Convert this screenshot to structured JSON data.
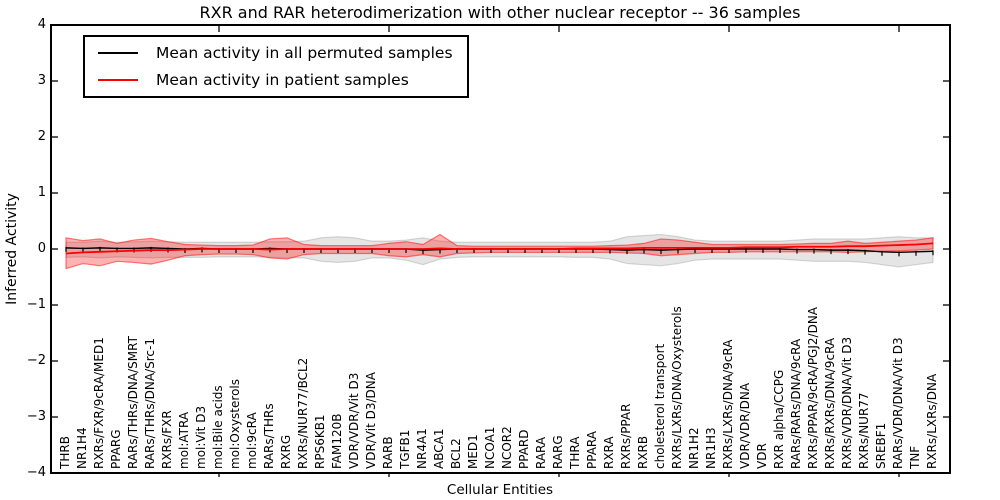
{
  "figure": {
    "title": "RXR and RAR heterodimerization with other nuclear receptor -- 36 samples",
    "xlabel": "Cellular Entities",
    "ylabel": "Inferred Activity"
  },
  "legend": {
    "entries": [
      {
        "label": "Mean activity in all permuted samples",
        "color": "#000000"
      },
      {
        "label": "Mean activity in patient samples",
        "color": "#ff0000"
      }
    ]
  },
  "axes": {
    "y_tick_labels": [
      "4",
      "3",
      "2",
      "1",
      "0",
      "−1",
      "−2",
      "−3",
      "−4"
    ],
    "y_tick_values": [
      4,
      3,
      2,
      1,
      0,
      -1,
      -2,
      -3,
      -4
    ],
    "spine_color": "#000000"
  },
  "chart_data": {
    "type": "line",
    "title": "RXR and RAR heterodimerization with other nuclear receptor -- 36 samples",
    "xlabel": "Cellular Entities",
    "ylabel": "Inferred Activity",
    "ylim": [
      -4,
      4
    ],
    "grid": false,
    "legend_position": "upper left",
    "top_tick_indices": [
      9,
      19,
      29,
      39,
      49
    ],
    "categories": [
      "THRB",
      "NR1H4",
      "RXRs/FXR/9cRA/MED1",
      "PPARG",
      "RARs/THRs/DNA/SMRT",
      "RARs/THRs/DNA/Src-1",
      "RXRs/FXR",
      "mol:ATRA",
      "mol:Vit D3",
      "mol:Bile acids",
      "mol:Oxysterols",
      "mol:9cRA",
      "RARs/THRs",
      "RXRG",
      "RXRs/NUR77/BCL2",
      "RPS6KB1",
      "FAM120B",
      "VDR/VDR/Vit D3",
      "VDR/Vit D3/DNA",
      "RARB",
      "TGFB1",
      "NR4A1",
      "ABCA1",
      "BCL2",
      "MED1",
      "NCOA1",
      "NCOR2",
      "PPARD",
      "RARA",
      "RARG",
      "THRA",
      "PPARA",
      "RXRA",
      "RXRs/PPAR",
      "RXRB",
      "cholesterol transport",
      "RXRs/LXRs/DNA/Oxysterols",
      "NR1H2",
      "NR1H3",
      "RXRs/LXRs/DNA/9cRA",
      "VDR/VDR/DNA",
      "VDR",
      "RXR alpha/CCPG",
      "RARs/RARs/DNA/9cRA",
      "RXRs/PPAR/9cRA/PGJ2/DNA",
      "RXRs/RXRs/DNA/9cRA",
      "RXRs/VDR/DNA/Vit D3",
      "RXRs/NUR77",
      "SREBF1",
      "RARs/VDR/DNA/Vit D3",
      "TNF",
      "RXRs/LXRs/DNA"
    ],
    "series": [
      {
        "name": "Mean activity in all permuted samples",
        "color": "#000000",
        "values": [
          0.02,
          0.01,
          0.02,
          0.01,
          0.01,
          0.02,
          0.01,
          0,
          0.01,
          0,
          0,
          0,
          0.01,
          0,
          0,
          0,
          0,
          0,
          0,
          0,
          0,
          -0.02,
          -0.01,
          0,
          0,
          0,
          0,
          0,
          0,
          0,
          0,
          0,
          -0.01,
          -0.02,
          -0.01,
          -0.02,
          -0.01,
          0,
          0,
          0,
          0,
          0,
          0,
          -0.01,
          -0.01,
          -0.02,
          -0.02,
          -0.03,
          -0.05,
          -0.06,
          -0.05,
          -0.04
        ]
      },
      {
        "name": "Mean activity in patient samples",
        "color": "#ff0000",
        "values": [
          -0.08,
          -0.06,
          -0.05,
          -0.04,
          -0.03,
          -0.02,
          -0.02,
          -0.01,
          0,
          0,
          0,
          0,
          -0.01,
          0,
          0,
          0,
          0,
          0,
          0,
          0,
          0,
          0,
          0.01,
          0,
          0,
          0,
          0,
          0,
          0,
          0,
          0.01,
          0.01,
          0.01,
          0.01,
          0.02,
          0.02,
          0.02,
          0.02,
          0.02,
          0.02,
          0.03,
          0.03,
          0.03,
          0.04,
          0.04,
          0.04,
          0.05,
          0.05,
          0.06,
          0.07,
          0.08,
          0.1
        ]
      }
    ],
    "bands": [
      {
        "name": "Permuted samples activity range",
        "fill": "rgba(0,0,0,0.10)",
        "stroke": "rgba(0,0,0,0.14)",
        "upper": [
          0.12,
          0.12,
          0.14,
          0.12,
          0.13,
          0.14,
          0.13,
          0.12,
          0.12,
          0.12,
          0.12,
          0.12,
          0.13,
          0.13,
          0.14,
          0.2,
          0.22,
          0.2,
          0.14,
          0.14,
          0.16,
          0.2,
          0.14,
          0.12,
          0.12,
          0.12,
          0.12,
          0.12,
          0.12,
          0.12,
          0.12,
          0.12,
          0.14,
          0.22,
          0.24,
          0.26,
          0.22,
          0.16,
          0.14,
          0.14,
          0.14,
          0.14,
          0.14,
          0.16,
          0.18,
          0.18,
          0.18,
          0.18,
          0.2,
          0.22,
          0.2,
          0.2
        ],
        "lower": [
          -0.15,
          -0.14,
          -0.16,
          -0.14,
          -0.15,
          -0.16,
          -0.15,
          -0.15,
          -0.15,
          -0.14,
          -0.14,
          -0.14,
          -0.15,
          -0.16,
          -0.16,
          -0.22,
          -0.24,
          -0.22,
          -0.16,
          -0.16,
          -0.2,
          -0.28,
          -0.18,
          -0.15,
          -0.14,
          -0.14,
          -0.14,
          -0.14,
          -0.14,
          -0.14,
          -0.15,
          -0.15,
          -0.18,
          -0.26,
          -0.28,
          -0.3,
          -0.26,
          -0.2,
          -0.18,
          -0.18,
          -0.18,
          -0.18,
          -0.18,
          -0.2,
          -0.22,
          -0.22,
          -0.22,
          -0.24,
          -0.28,
          -0.32,
          -0.28,
          -0.24
        ]
      },
      {
        "name": "Patient samples activity range",
        "fill": "rgba(255,0,0,0.30)",
        "stroke": "rgba(255,0,0,0.5)",
        "upper": [
          0.2,
          0.15,
          0.18,
          0.1,
          0.16,
          0.19,
          0.13,
          0.08,
          0.07,
          0.06,
          0.06,
          0.07,
          0.18,
          0.2,
          0.08,
          0.06,
          0.06,
          0.06,
          0.06,
          0.1,
          0.13,
          0.08,
          0.26,
          0.06,
          0.05,
          0.05,
          0.05,
          0.05,
          0.05,
          0.05,
          0.05,
          0.05,
          0.06,
          0.07,
          0.1,
          0.18,
          0.16,
          0.12,
          0.08,
          0.08,
          0.08,
          0.08,
          0.08,
          0.09,
          0.1,
          0.1,
          0.14,
          0.1,
          0.12,
          0.14,
          0.16,
          0.2
        ],
        "lower": [
          -0.35,
          -0.26,
          -0.3,
          -0.22,
          -0.24,
          -0.27,
          -0.2,
          -0.12,
          -0.1,
          -0.09,
          -0.09,
          -0.1,
          -0.16,
          -0.18,
          -0.1,
          -0.08,
          -0.08,
          -0.08,
          -0.08,
          -0.12,
          -0.14,
          -0.1,
          -0.14,
          -0.08,
          -0.07,
          -0.06,
          -0.06,
          -0.06,
          -0.06,
          -0.06,
          -0.06,
          -0.06,
          -0.06,
          -0.07,
          -0.08,
          -0.12,
          -0.1,
          -0.08,
          -0.06,
          -0.06,
          -0.05,
          -0.05,
          -0.05,
          -0.05,
          -0.05,
          -0.05,
          -0.06,
          -0.05,
          -0.04,
          -0.03,
          -0.02,
          0
        ]
      }
    ]
  }
}
